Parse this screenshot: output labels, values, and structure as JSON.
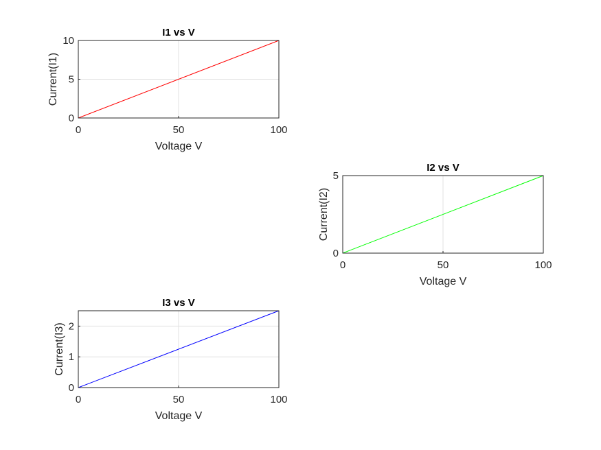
{
  "chart_data": [
    {
      "type": "line",
      "title": "I1 vs V",
      "xlabel": "Voltage V",
      "ylabel": "Current(I1)",
      "xlim": [
        0,
        100
      ],
      "ylim": [
        0,
        10
      ],
      "xticks": [
        0,
        50,
        100
      ],
      "yticks": [
        0,
        5,
        10
      ],
      "grid": true,
      "series": [
        {
          "color": "#ff0000",
          "x": [
            0,
            100
          ],
          "y": [
            0,
            10
          ]
        }
      ]
    },
    {
      "type": "line",
      "title": "I2 vs V",
      "xlabel": "Voltage V",
      "ylabel": "Current(I2)",
      "xlim": [
        0,
        100
      ],
      "ylim": [
        0,
        5
      ],
      "xticks": [
        0,
        50,
        100
      ],
      "yticks": [
        0,
        5
      ],
      "grid": true,
      "series": [
        {
          "color": "#00ff00",
          "x": [
            0,
            100
          ],
          "y": [
            0,
            5
          ]
        }
      ]
    },
    {
      "type": "line",
      "title": "I3 vs V",
      "xlabel": "Voltage V",
      "ylabel": "Current(I3)",
      "xlim": [
        0,
        100
      ],
      "ylim": [
        0,
        2.5
      ],
      "xticks": [
        0,
        50,
        100
      ],
      "yticks": [
        0,
        1,
        2
      ],
      "grid": true,
      "series": [
        {
          "color": "#0000ff",
          "x": [
            0,
            100
          ],
          "y": [
            0,
            2.5
          ]
        }
      ]
    }
  ]
}
